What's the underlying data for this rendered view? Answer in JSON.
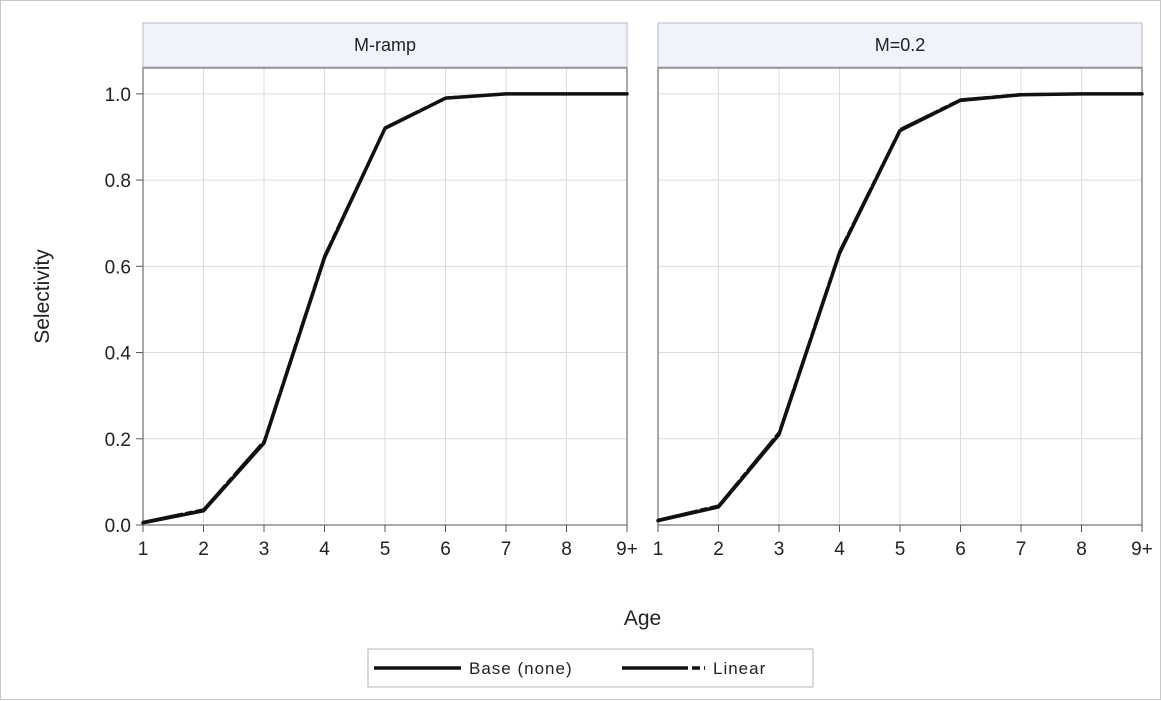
{
  "chart_data": {
    "type": "line",
    "ylabel": "Selectivity",
    "xlabel": "Age",
    "x_ticks": [
      "1",
      "2",
      "3",
      "4",
      "5",
      "6",
      "7",
      "8",
      "9+"
    ],
    "y_ticks": [
      "0.0",
      "0.2",
      "0.4",
      "0.6",
      "0.8",
      "1.0"
    ],
    "ylim": [
      0,
      1.06
    ],
    "grid": true,
    "legend_position": "bottom",
    "legend": [
      {
        "label": "Base (none)",
        "dash": "solid"
      },
      {
        "label": "Linear",
        "dash": "long-dash"
      }
    ],
    "panels": [
      {
        "title": "M-ramp",
        "series": [
          {
            "name": "Base (none)",
            "x": [
              1,
              2,
              3,
              4,
              5,
              6,
              7,
              8,
              9
            ],
            "y": [
              0.005,
              0.033,
              0.19,
              0.62,
              0.92,
              0.99,
              1.0,
              1.0,
              1.0
            ]
          },
          {
            "name": "Linear",
            "x": [
              1,
              2,
              3,
              4,
              5,
              6,
              7,
              8,
              9
            ],
            "y": [
              0.007,
              0.036,
              0.195,
              0.625,
              0.922,
              0.991,
              1.0,
              1.0,
              1.0
            ]
          }
        ]
      },
      {
        "title": "M=0.2",
        "series": [
          {
            "name": "Base (none)",
            "x": [
              1,
              2,
              3,
              4,
              5,
              6,
              7,
              8,
              9
            ],
            "y": [
              0.01,
              0.042,
              0.21,
              0.63,
              0.915,
              0.985,
              0.998,
              1.0,
              1.0
            ]
          },
          {
            "name": "Linear",
            "x": [
              1,
              2,
              3,
              4,
              5,
              6,
              7,
              8,
              9
            ],
            "y": [
              0.012,
              0.045,
              0.215,
              0.635,
              0.918,
              0.987,
              0.999,
              1.0,
              1.0
            ]
          }
        ]
      }
    ]
  }
}
